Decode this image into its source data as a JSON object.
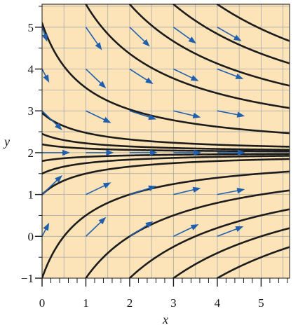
{
  "chart_data": {
    "type": "slope-field",
    "title": "",
    "xlabel": "x",
    "ylabel": "y",
    "xlim": [
      0,
      5.65
    ],
    "ylim": [
      -1,
      5.55
    ],
    "x_ticks": [
      0,
      1,
      2,
      3,
      4,
      5
    ],
    "y_ticks": [
      -1,
      0,
      1,
      2,
      3,
      4,
      5
    ],
    "x_minor_step": 0.2,
    "grid": true,
    "equilibrium": 2,
    "solution_curves": [
      {
        "x0": 0.0,
        "y0": 5.1
      },
      {
        "x0": 0.0,
        "y0": 2.95
      },
      {
        "x0": 0.0,
        "y0": 2.45
      },
      {
        "x0": 0.0,
        "y0": 2.2
      },
      {
        "x0": 0.0,
        "y0": 1.8
      },
      {
        "x0": 0.0,
        "y0": 1.5
      },
      {
        "x0": 0.0,
        "y0": 1.0
      },
      {
        "x0": 0.0,
        "y0": -1.0
      },
      {
        "x0": 1.0,
        "y0": -1.0
      },
      {
        "x0": 2.0,
        "y0": -1.0
      },
      {
        "x0": 3.0,
        "y0": -1.0
      },
      {
        "x0": 4.0,
        "y0": -1.0
      },
      {
        "x0": 1.0,
        "y0": 5.55
      },
      {
        "x0": 2.0,
        "y0": 5.55
      },
      {
        "x0": 3.0,
        "y0": 5.55
      },
      {
        "x0": 4.0,
        "y0": 5.55
      }
    ],
    "field_x": [
      0,
      1,
      2,
      3,
      4
    ],
    "field_y": [
      0,
      1,
      2,
      3,
      4,
      5
    ],
    "colors": {
      "background": "#fde4b8",
      "grid": "#a8a8a8",
      "curve": "#1c1c1c",
      "vector": "#1f5fae",
      "axis": "#1a1a1a"
    }
  }
}
